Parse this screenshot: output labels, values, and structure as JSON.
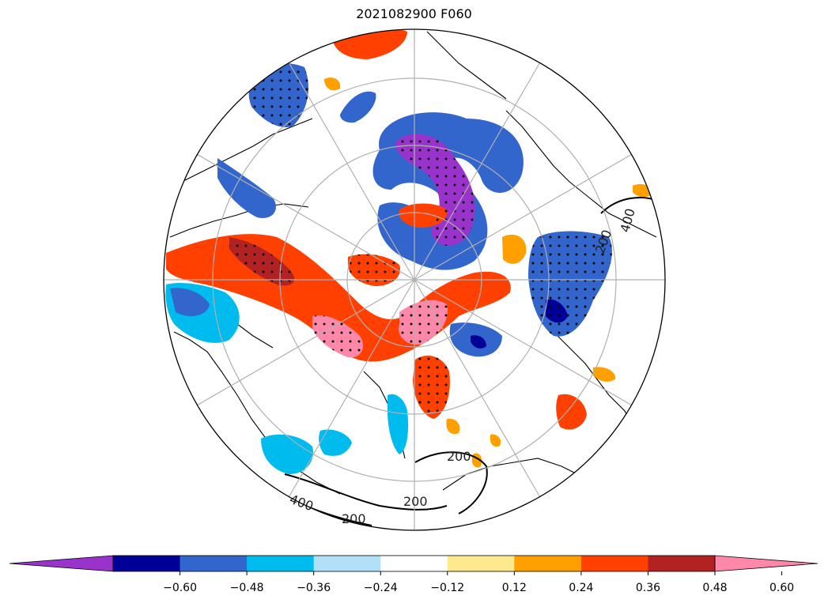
{
  "title": "2021082900 F060",
  "colorbar": {
    "colors": [
      "#9933cc",
      "#000099",
      "#3366cc",
      "#00bbee",
      "#b3e0f9",
      "#ffffff",
      "#ffe98e",
      "#ff9f00",
      "#ff4000",
      "#b22222",
      "#ff88aa"
    ],
    "tick_labels": [
      "−0.60",
      "−0.48",
      "−0.36",
      "−0.24",
      "−0.12",
      "0.12",
      "0.24",
      "0.36",
      "0.48",
      "0.60"
    ],
    "extend": "both"
  },
  "contour_labels": [
    "400",
    "400",
    "200",
    "200",
    "200",
    "200"
  ]
}
